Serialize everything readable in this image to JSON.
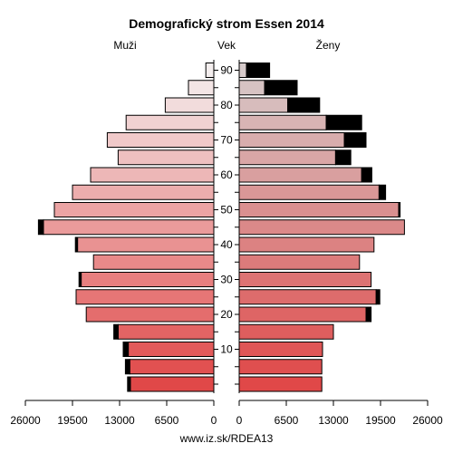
{
  "chart_data": {
    "type": "bar",
    "title": "Demografický strom Essen 2014",
    "left_label": "Muži",
    "center_label": "Vek",
    "right_label": "Ženy",
    "source": "www.iz.sk/RDEA13",
    "age_groups": [
      "0-4",
      "5-9",
      "10-14",
      "15-19",
      "20-24",
      "25-29",
      "30-34",
      "35-39",
      "40-44",
      "45-49",
      "50-54",
      "55-59",
      "60-64",
      "65-69",
      "70-74",
      "75-79",
      "80-84",
      "85-89",
      "90+"
    ],
    "age_ticks": [
      10,
      20,
      30,
      40,
      50,
      60,
      70,
      80,
      90
    ],
    "x_ticks": [
      "26000",
      "19500",
      "13000",
      "6500",
      "0",
      "0",
      "6500",
      "13000",
      "19500",
      "26000"
    ],
    "xlim": [
      0,
      26000
    ],
    "series": [
      {
        "name": "Muži",
        "values": [
          11500,
          11600,
          11800,
          13200,
          17600,
          19000,
          18300,
          16600,
          18800,
          23500,
          22000,
          19500,
          17000,
          13200,
          14700,
          12100,
          6700,
          3500,
          1100
        ],
        "excess": [
          400,
          600,
          700,
          600,
          0,
          0,
          300,
          0,
          300,
          700,
          0,
          0,
          0,
          0,
          0,
          0,
          0,
          0,
          0
        ]
      },
      {
        "name": "Ženy",
        "values": [
          11400,
          11400,
          11500,
          13000,
          17500,
          18900,
          18200,
          16600,
          18600,
          22800,
          22000,
          19300,
          16900,
          13300,
          14500,
          12000,
          6700,
          3500,
          1000
        ],
        "excess": [
          0,
          0,
          0,
          0,
          700,
          500,
          0,
          0,
          0,
          0,
          200,
          900,
          1400,
          2100,
          3000,
          4900,
          4400,
          4500,
          3200
        ]
      }
    ]
  }
}
